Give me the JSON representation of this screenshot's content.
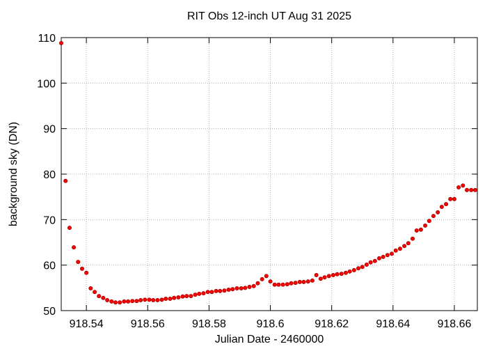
{
  "chart_data": {
    "type": "scatter",
    "title": "RIT Obs 12-inch UT Aug 31 2025",
    "x_label": "Julian Date - 2460000",
    "y_label": "background sky (DN)",
    "color": "#ff0000",
    "grid": true,
    "xlim": [
      918.5318,
      918.6675
    ],
    "ylim": [
      50,
      110
    ],
    "xticks": [
      918.54,
      918.56,
      918.58,
      918.6,
      918.62,
      918.64,
      918.66
    ],
    "yticks": [
      50,
      60,
      70,
      80,
      90,
      100,
      110
    ],
    "x": [
      918.5318,
      918.5332,
      918.5345,
      918.5359,
      918.5373,
      918.5386,
      918.54,
      918.5414,
      918.5427,
      918.5441,
      918.5455,
      918.5468,
      918.5482,
      918.5495,
      918.5509,
      918.5523,
      918.5536,
      918.555,
      918.5564,
      918.5577,
      918.5591,
      918.5605,
      918.5618,
      918.5632,
      918.5646,
      918.5659,
      918.5673,
      918.5686,
      918.57,
      918.5714,
      918.5727,
      918.5741,
      918.5755,
      918.5768,
      918.5782,
      918.5796,
      918.5809,
      918.5823,
      918.5836,
      918.585,
      918.5864,
      918.5877,
      918.5891,
      918.5905,
      918.5918,
      918.5932,
      918.5946,
      918.5959,
      918.5973,
      918.5987,
      918.6,
      918.6014,
      918.6027,
      918.6041,
      918.6055,
      918.6068,
      918.6082,
      918.6096,
      918.6109,
      918.6123,
      918.6137,
      918.615,
      918.6164,
      918.6177,
      918.6191,
      918.6205,
      918.6218,
      918.6232,
      918.6246,
      918.6259,
      918.6273,
      918.6287,
      918.63,
      918.6314,
      918.6327,
      918.6341,
      918.6355,
      918.6368,
      918.6382,
      918.6396,
      918.6409,
      918.6423,
      918.6437,
      918.645,
      918.6464,
      918.6477,
      918.6491,
      918.6505,
      918.6518,
      918.6532,
      918.6546,
      918.6559,
      918.6573,
      918.6587,
      918.66,
      918.6614,
      918.6628,
      918.6641,
      918.6655,
      918.6668
    ],
    "values": [
      108.8,
      78.5,
      68.2,
      63.9,
      60.7,
      59.2,
      58.3,
      54.9,
      54.1,
      53.2,
      52.8,
      52.3,
      52.0,
      51.8,
      51.8,
      52.0,
      52.0,
      52.1,
      52.1,
      52.3,
      52.4,
      52.4,
      52.3,
      52.3,
      52.4,
      52.6,
      52.6,
      52.8,
      52.9,
      53.1,
      53.2,
      53.2,
      53.5,
      53.7,
      53.8,
      54.1,
      54.1,
      54.3,
      54.3,
      54.4,
      54.6,
      54.7,
      54.9,
      54.9,
      55.0,
      55.2,
      55.4,
      56.0,
      56.9,
      57.6,
      56.4,
      55.7,
      55.7,
      55.7,
      55.8,
      56.0,
      56.1,
      56.3,
      56.3,
      56.4,
      56.6,
      57.8,
      57.0,
      57.3,
      57.6,
      57.8,
      58.0,
      58.1,
      58.3,
      58.6,
      58.9,
      59.3,
      59.6,
      60.1,
      60.6,
      60.9,
      61.5,
      61.8,
      62.2,
      62.5,
      63.2,
      63.6,
      64.2,
      64.8,
      65.8,
      67.6,
      67.8,
      68.7,
      69.7,
      70.8,
      71.6,
      72.8,
      73.4,
      74.5,
      74.5,
      77.1,
      77.5,
      76.5,
      76.5,
      76.5
    ]
  }
}
